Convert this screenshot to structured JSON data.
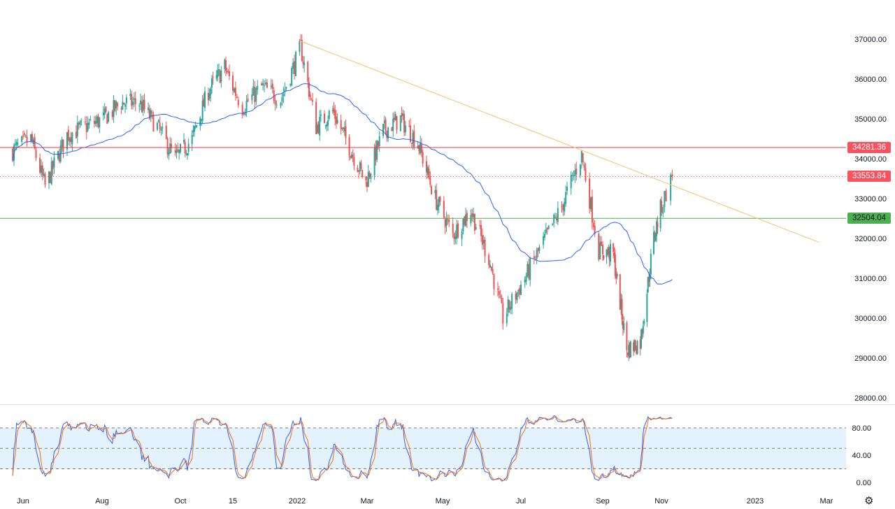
{
  "chart_data": {
    "type": "candlestick",
    "colors": {
      "up": "#26a69a",
      "down": "#ef5350",
      "ma": "#2962ff",
      "trendline": "#f5c26b",
      "stoch_k": "#2962ff",
      "stoch_d": "#ff6d00",
      "stoch_band": "#e3f2fd"
    },
    "price_axis": {
      "ylim": [
        27800,
        37600
      ],
      "ticks": [
        "28000.00",
        "29000.00",
        "30000.00",
        "31000.00",
        "32000.00",
        "33000.00",
        "34000.00",
        "35000.00",
        "36000.00",
        "37000.00"
      ]
    },
    "time_axis": {
      "labels": [
        "Jun",
        "Aug",
        "Oct",
        "15",
        "2022",
        "Mar",
        "May",
        "Jul",
        "Sep",
        "Nov",
        "2023",
        "Mar"
      ]
    },
    "closes": [
      {
        "date": "2021-05-24",
        "close": 34200
      },
      {
        "date": "2021-06-07",
        "close": 34500
      },
      {
        "date": "2021-06-18",
        "close": 33300
      },
      {
        "date": "2021-07-05",
        "close": 34600
      },
      {
        "date": "2021-07-19",
        "close": 34800
      },
      {
        "date": "2021-08-02",
        "close": 35000
      },
      {
        "date": "2021-08-16",
        "close": 35400
      },
      {
        "date": "2021-08-30",
        "close": 35400
      },
      {
        "date": "2021-09-13",
        "close": 34800
      },
      {
        "date": "2021-09-27",
        "close": 34000
      },
      {
        "date": "2021-10-11",
        "close": 34500
      },
      {
        "date": "2021-10-25",
        "close": 35700
      },
      {
        "date": "2021-11-08",
        "close": 36300
      },
      {
        "date": "2021-11-22",
        "close": 35300
      },
      {
        "date": "2021-12-06",
        "close": 35800
      },
      {
        "date": "2021-12-20",
        "close": 35500
      },
      {
        "date": "2022-01-04",
        "close": 36800
      },
      {
        "date": "2022-01-17",
        "close": 34800
      },
      {
        "date": "2022-01-31",
        "close": 35200
      },
      {
        "date": "2022-02-14",
        "close": 34300
      },
      {
        "date": "2022-02-28",
        "close": 33400
      },
      {
        "date": "2022-03-14",
        "close": 34700
      },
      {
        "date": "2022-03-28",
        "close": 35000
      },
      {
        "date": "2022-04-11",
        "close": 34400
      },
      {
        "date": "2022-04-25",
        "close": 33000
      },
      {
        "date": "2022-05-09",
        "close": 32100
      },
      {
        "date": "2022-05-23",
        "close": 32700
      },
      {
        "date": "2022-06-06",
        "close": 31500
      },
      {
        "date": "2022-06-17",
        "close": 30000
      },
      {
        "date": "2022-07-04",
        "close": 31000
      },
      {
        "date": "2022-07-18",
        "close": 31900
      },
      {
        "date": "2022-08-01",
        "close": 32800
      },
      {
        "date": "2022-08-16",
        "close": 34100
      },
      {
        "date": "2022-08-29",
        "close": 31700
      },
      {
        "date": "2022-09-12",
        "close": 31600
      },
      {
        "date": "2022-09-26",
        "close": 29200
      },
      {
        "date": "2022-10-10",
        "close": 29400
      },
      {
        "date": "2022-10-24",
        "close": 32000
      },
      {
        "date": "2022-11-08",
        "close": 33553.84
      }
    ],
    "moving_average": {
      "visible": true
    },
    "trendline": {
      "from": {
        "date": "2022-01-04",
        "price": 36950
      },
      "to": {
        "date": "2023-02-23",
        "price": 31900
      }
    },
    "levels": [
      {
        "label": "34281.36",
        "price": 34281.36,
        "color": "#f23645",
        "style": "solid"
      },
      {
        "label": "33553.84",
        "price": 33553.84,
        "color": "#f23645",
        "style": "dotted"
      },
      {
        "label": "32504.04",
        "price": 32504.04,
        "color": "#4caf50",
        "style": "solid"
      }
    ],
    "stochastic": {
      "ticks": [
        "0.00",
        "40.00",
        "80.00"
      ],
      "bands": [
        20,
        50,
        80
      ],
      "ylim": [
        -5,
        105
      ]
    }
  },
  "toolbar": {
    "settings_icon": "gear-icon"
  }
}
